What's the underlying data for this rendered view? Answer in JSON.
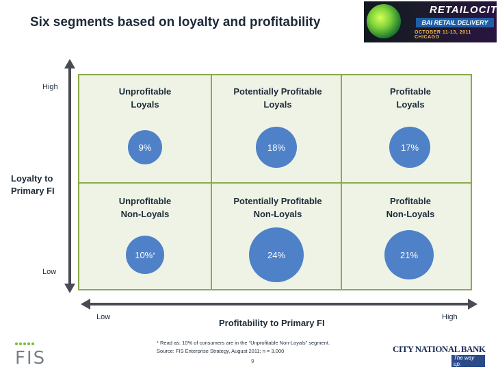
{
  "title": "Six segments based on loyalty and profitability",
  "banner": {
    "brand": "RETAILOCITY",
    "event": "BAI RETAIL DELIVERY",
    "dates": "OCTOBER 11-13, 2011 CHICAGO"
  },
  "y_axis": {
    "title": "Loyalty to\nPrimary FI",
    "high": "High",
    "low": "Low"
  },
  "x_axis": {
    "title": "Profitability to Primary FI",
    "low": "Low",
    "high": "High"
  },
  "segments": [
    {
      "label": "Unprofitable\nLoyals",
      "percent": "9%",
      "value": 9
    },
    {
      "label": "Potentially Profitable\nLoyals",
      "percent": "18%",
      "value": 18
    },
    {
      "label": "Profitable\nLoyals",
      "percent": "17%",
      "value": 17
    },
    {
      "label": "Unprofitable\nNon-Loyals",
      "percent": "10%",
      "marker": "*",
      "value": 10
    },
    {
      "label": "Potentially Profitable\nNon-Loyals",
      "percent": "24%",
      "value": 24
    },
    {
      "label": "Profitable\nNon-Loyals",
      "percent": "21%",
      "value": 21
    }
  ],
  "notes": {
    "read_as": "* Read as:  10% of consumers are in the “Unprofitable Non-Loyals” segment.",
    "source": "Source: FIS Enterprise Strategy, August 2011; n = 3,000"
  },
  "page_number": "9",
  "logos": {
    "left": "FIS",
    "right": "CITY NATIONAL BANK",
    "tagline": "The way up."
  },
  "colors": {
    "bubble": "#4f81c9",
    "grid_border": "#8aab4a",
    "grid_fill": "#eef3e6",
    "axis": "#4a4a55"
  }
}
